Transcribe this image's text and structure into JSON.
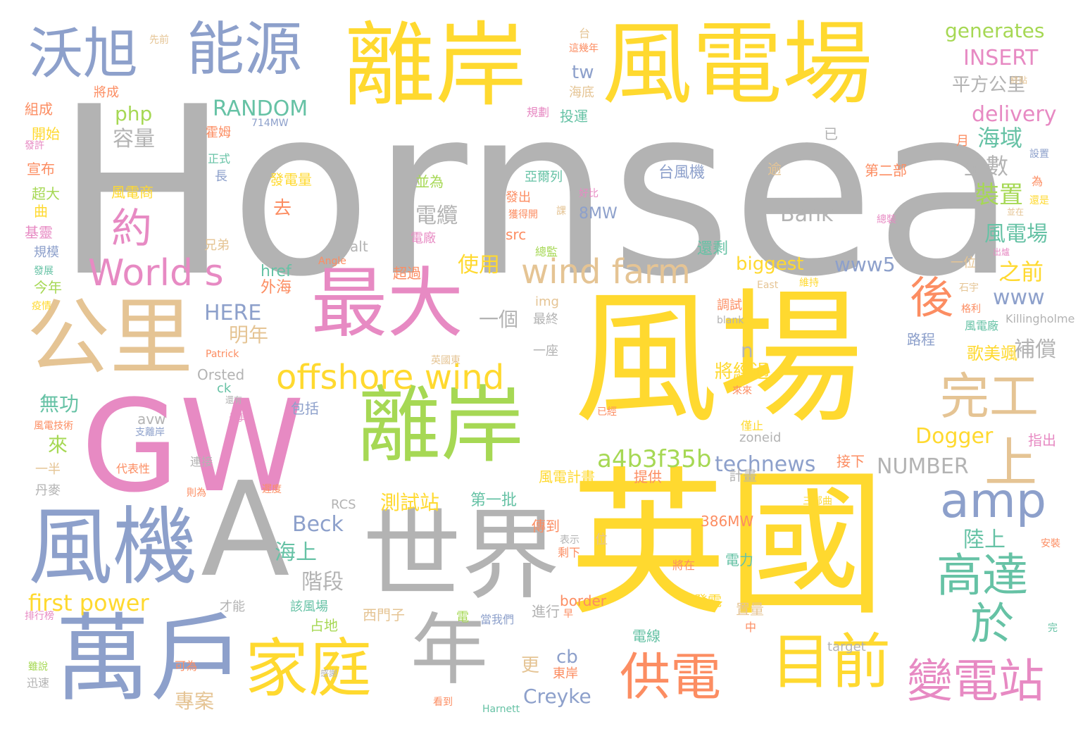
{
  "palette": {
    "yellow": "#FFD92F",
    "gray": "#B3B3B3",
    "blue": "#8DA0CB",
    "tan": "#E5C494",
    "green": "#A6D854",
    "pink": "#E78AC3",
    "teal": "#66C2A5",
    "orange": "#FC8D62"
  },
  "words": [
    "Hornsea",
    "風場",
    "英國",
    "GW",
    "離岸",
    "風電場",
    "離岸",
    "最大",
    "A",
    "世界",
    "萬戶",
    "風機",
    "公里",
    "沃旭",
    "能源",
    "家庭",
    "年",
    "目前",
    "供電",
    "offshore wind",
    "wind farm",
    "World s",
    "amp",
    "高達",
    "完工",
    "變電站",
    "後",
    "約",
    "於",
    "上",
    "generates",
    "INSERT",
    "RANDOM",
    "php",
    "容量",
    "平方公里",
    "delivery",
    "海域",
    "全數",
    "裝置",
    "tw",
    "Bank",
    "電纜",
    "風電場",
    "www5",
    "biggest",
    "之前",
    "www",
    "使用",
    "明年",
    "一個",
    "HERE",
    "補償",
    "歌美颯",
    "n",
    "Dogger",
    "將經過",
    "a4b3f35b",
    "technews",
    "NUMBER",
    "測試站",
    "第一批",
    "Beck",
    "海上",
    "陸上",
    "階段",
    "first power",
    "Creyke",
    "專案",
    "更",
    "cb",
    "無功",
    "來",
    "去",
    "還剩",
    "外海",
    "href",
    "alt",
    "路程",
    "台風機",
    "發電量",
    "亞爾列",
    "並為",
    "第二部",
    "風電商",
    "8MW",
    "src",
    "風電計畫",
    "提供",
    "計畫",
    "386MW",
    "電力",
    "發電",
    "置量",
    "border",
    "電線",
    "進行",
    "東岸",
    "占地",
    "西門子",
    "電",
    "當我們",
    "該風場",
    "傳到",
    "RCS",
    "先前",
    "台",
    "這幾年",
    "海底",
    "規劃",
    "投運",
    "714MW",
    "將成",
    "組成",
    "開始",
    "發許",
    "宣布",
    "超大",
    "曲",
    "基靈",
    "規模",
    "發展",
    "今年",
    "疫情",
    "兄弟",
    "正式",
    "長",
    "霍姆",
    "逾",
    "已",
    "月",
    "設置",
    "為",
    "還是",
    "並在",
    "總監",
    "獲得開",
    "好比",
    "發出",
    "課",
    "電廠",
    "Angle",
    "超過",
    "Patrick",
    "Orsted",
    "ck",
    "還有",
    "avw",
    "支離岸",
    "風電技術",
    "一半",
    "丹麥",
    "代表性",
    "連接",
    "則為",
    "遲度",
    "最具",
    "包括",
    "已經",
    "僅止",
    "zoneid",
    "接下",
    "指出",
    "安裝",
    "三部曲",
    "表示",
    "位",
    "剩下",
    "將在",
    "中",
    "完",
    "target",
    "看到",
    "Harnett",
    "可為",
    "雖說",
    "迅速",
    "排行榜",
    "才能",
    "一座",
    "最終",
    "img",
    "調試",
    "blank",
    "維持",
    "East",
    "格利",
    "石宇",
    "一位",
    "出爐",
    "Killingholme",
    "風電廠",
    "總裝",
    "終點",
    "英國東",
    "來來",
    "早",
    "感謝",
    "音"
  ]
}
